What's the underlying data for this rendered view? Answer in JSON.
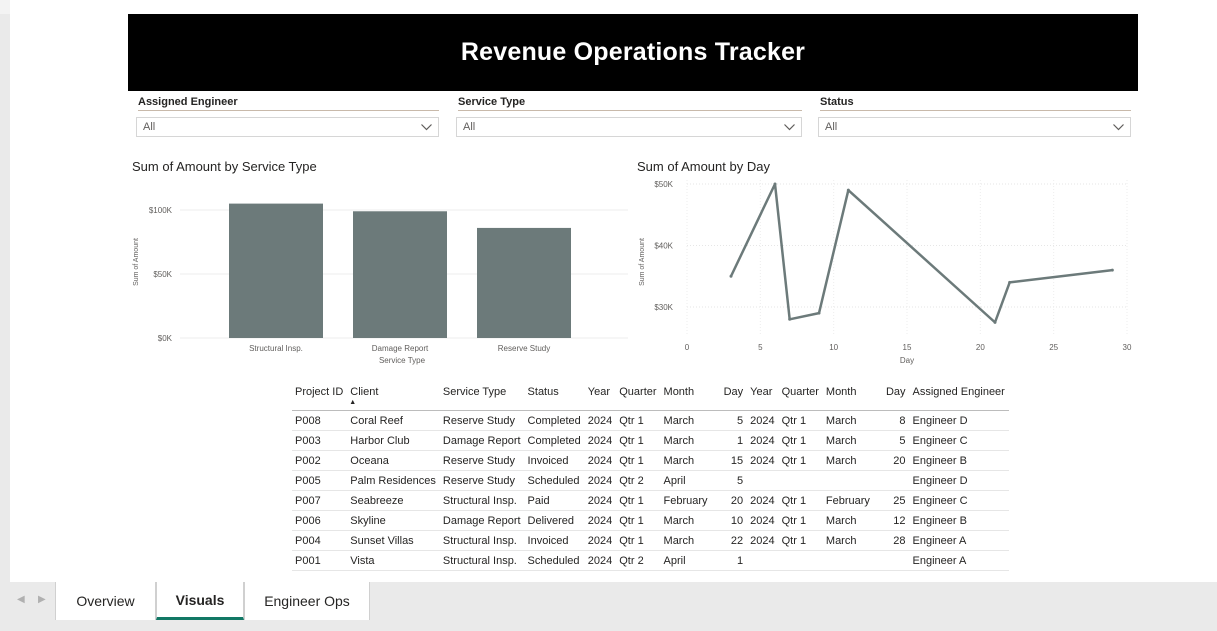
{
  "report": {
    "title": "Revenue Operations Tracker"
  },
  "slicers": [
    {
      "label": "Assigned Engineer",
      "value": "All"
    },
    {
      "label": "Service Type",
      "value": "All"
    },
    {
      "label": "Status",
      "value": "All"
    }
  ],
  "bar_chart": {
    "title": "Sum of Amount by Service Type",
    "ylabel": "Sum of Amount",
    "xlabel": "Service Type",
    "yticks": [
      "$0K",
      "$50K",
      "$100K"
    ],
    "color": "#6c7a7a"
  },
  "line_chart": {
    "title": "Sum of Amount by Day",
    "ylabel": "Sum of Amount",
    "xlabel": "Day",
    "yticks": [
      "$30K",
      "$40K",
      "$50K"
    ],
    "xticks": [
      "0",
      "5",
      "10",
      "15",
      "20",
      "25",
      "30"
    ],
    "color": "#6c7a7a"
  },
  "chart_data": [
    {
      "type": "bar",
      "title": "Sum of Amount by Service Type",
      "categories": [
        "Structural Insp.",
        "Damage Report",
        "Reserve Study"
      ],
      "values": [
        105000,
        99000,
        86000
      ],
      "xlabel": "Service Type",
      "ylabel": "Sum of Amount",
      "ylim": [
        0,
        100000
      ],
      "yticks": [
        0,
        50000,
        100000
      ],
      "grid": true
    },
    {
      "type": "line",
      "title": "Sum of Amount by Day",
      "x": [
        3,
        6,
        7,
        9,
        11,
        21,
        22,
        29
      ],
      "y": [
        35000,
        50000,
        28000,
        29000,
        49000,
        27500,
        34000,
        36000
      ],
      "xlabel": "Day",
      "ylabel": "Sum of Amount",
      "xlim": [
        0,
        30
      ],
      "ylim": [
        30000,
        50000
      ],
      "xticks": [
        0,
        5,
        10,
        15,
        20,
        25,
        30
      ],
      "yticks": [
        30000,
        40000,
        50000
      ],
      "grid": true
    }
  ],
  "table": {
    "columns": [
      "Project ID",
      "Client",
      "Service Type",
      "Status",
      "Year",
      "Quarter",
      "Month",
      "Day",
      "Year",
      "Quarter",
      "Month",
      "Day",
      "Assigned Engineer"
    ],
    "rows": [
      [
        "P008",
        "Coral Reef",
        "Reserve Study",
        "Completed",
        "2024",
        "Qtr 1",
        "March",
        "5",
        "2024",
        "Qtr 1",
        "March",
        "8",
        "Engineer D"
      ],
      [
        "P003",
        "Harbor Club",
        "Damage Report",
        "Completed",
        "2024",
        "Qtr 1",
        "March",
        "1",
        "2024",
        "Qtr 1",
        "March",
        "5",
        "Engineer C"
      ],
      [
        "P002",
        "Oceana",
        "Reserve Study",
        "Invoiced",
        "2024",
        "Qtr 1",
        "March",
        "15",
        "2024",
        "Qtr 1",
        "March",
        "20",
        "Engineer B"
      ],
      [
        "P005",
        "Palm Residences",
        "Reserve Study",
        "Scheduled",
        "2024",
        "Qtr 2",
        "April",
        "5",
        "",
        "",
        "",
        "",
        "Engineer D"
      ],
      [
        "P007",
        "Seabreeze",
        "Structural Insp.",
        "Paid",
        "2024",
        "Qtr 1",
        "February",
        "20",
        "2024",
        "Qtr 1",
        "February",
        "25",
        "Engineer C"
      ],
      [
        "P006",
        "Skyline",
        "Damage Report",
        "Delivered",
        "2024",
        "Qtr 1",
        "March",
        "10",
        "2024",
        "Qtr 1",
        "March",
        "12",
        "Engineer B"
      ],
      [
        "P004",
        "Sunset Villas",
        "Structural Insp.",
        "Invoiced",
        "2024",
        "Qtr 1",
        "March",
        "22",
        "2024",
        "Qtr 1",
        "March",
        "28",
        "Engineer A"
      ],
      [
        "P001",
        "Vista",
        "Structural Insp.",
        "Scheduled",
        "2024",
        "Qtr 2",
        "April",
        "1",
        "",
        "",
        "",
        "",
        "Engineer A"
      ]
    ]
  },
  "tabs": [
    {
      "label": "Overview",
      "active": false
    },
    {
      "label": "Visuals",
      "active": true
    },
    {
      "label": "Engineer Ops",
      "active": false
    }
  ],
  "colors": {
    "accent": "#117865",
    "series": "#6c7a7a",
    "banner": "#000000"
  }
}
